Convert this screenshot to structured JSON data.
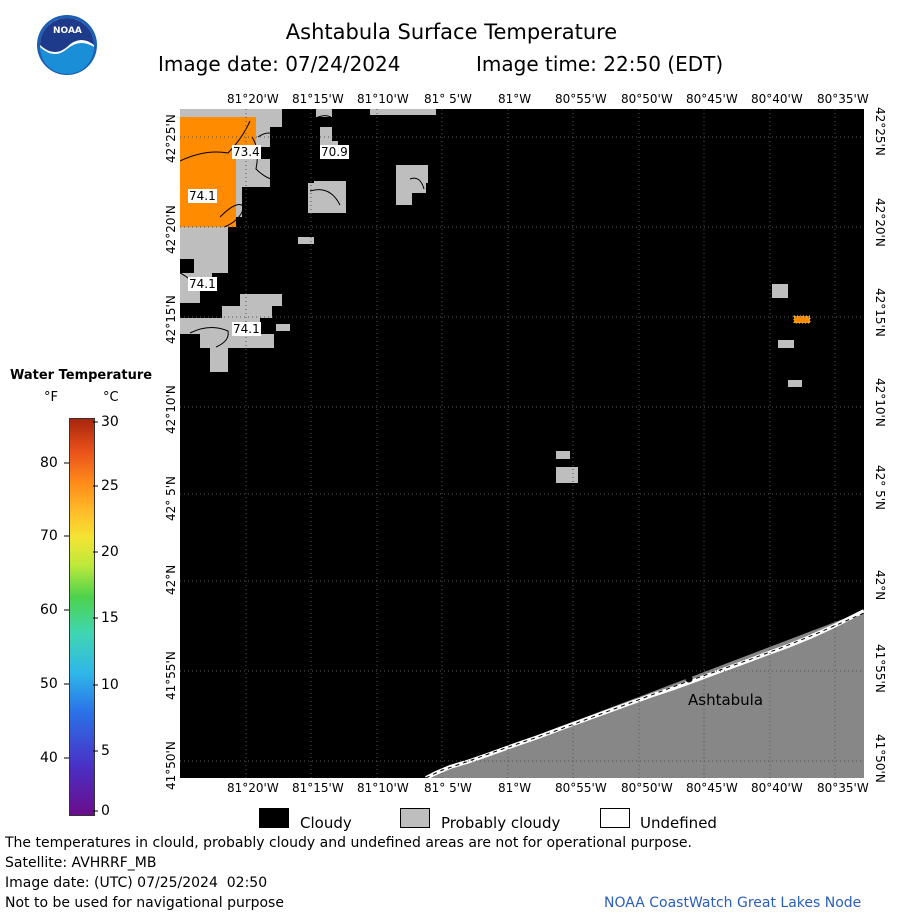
{
  "header": {
    "title": "Ashtabula Surface Temperature",
    "image_date_label": "Image date: 07/24/2024",
    "image_time_label": "Image time: 22:50 (EDT)"
  },
  "logo": {
    "text": "NOAA"
  },
  "map": {
    "top_lon_labels": [
      "81°20'W",
      "81°15'W",
      "81°10'W",
      "81° 5'W",
      "81°W",
      "80°55'W",
      "80°50'W",
      "80°45'W",
      "80°40'W",
      "80°35'W"
    ],
    "bottom_lon_labels": [
      "81°20'W",
      "81°15'W",
      "81°10'W",
      "81° 5'W",
      "81°W",
      "80°55'W",
      "80°50'W",
      "80°45'W",
      "80°40'W",
      "80°35'W"
    ],
    "lat_labels": [
      "42°25'N",
      "42°20'N",
      "42°15'N",
      "42°10'N",
      "42° 5'N",
      "42°N",
      "41°55'N",
      "41°50'N"
    ],
    "city_label": "Ashtabula",
    "temp_labels": [
      "73.4",
      "70.9",
      "74.1",
      "74.1",
      "74.1"
    ],
    "colors": {
      "cloudy": "#000000",
      "probably_cloudy": "#bebebe",
      "land": "#878787",
      "warm_water": "#ff8c00"
    }
  },
  "legend": {
    "title": "Water Temperature",
    "unit_f": "°F",
    "unit_c": "°C",
    "f_ticks": [
      "80",
      "70",
      "60",
      "50",
      "40"
    ],
    "c_ticks": [
      "30",
      "25",
      "20",
      "15",
      "10",
      "5",
      "0"
    ]
  },
  "key": {
    "cloudy": "Cloudy",
    "probably_cloudy": "Probably cloudy",
    "undefined": "Undefined"
  },
  "footer": {
    "disclaimer": "The temperatures in clould, probably cloudy and undefined areas are not for operational purpose.",
    "satellite": "Satellite: AVHRRF_MB",
    "utc_date": "Image date: (UTC) 07/25/2024  02:50",
    "navigation": "Not to be used for navigational purpose",
    "credit": "NOAA CoastWatch Great Lakes Node"
  }
}
